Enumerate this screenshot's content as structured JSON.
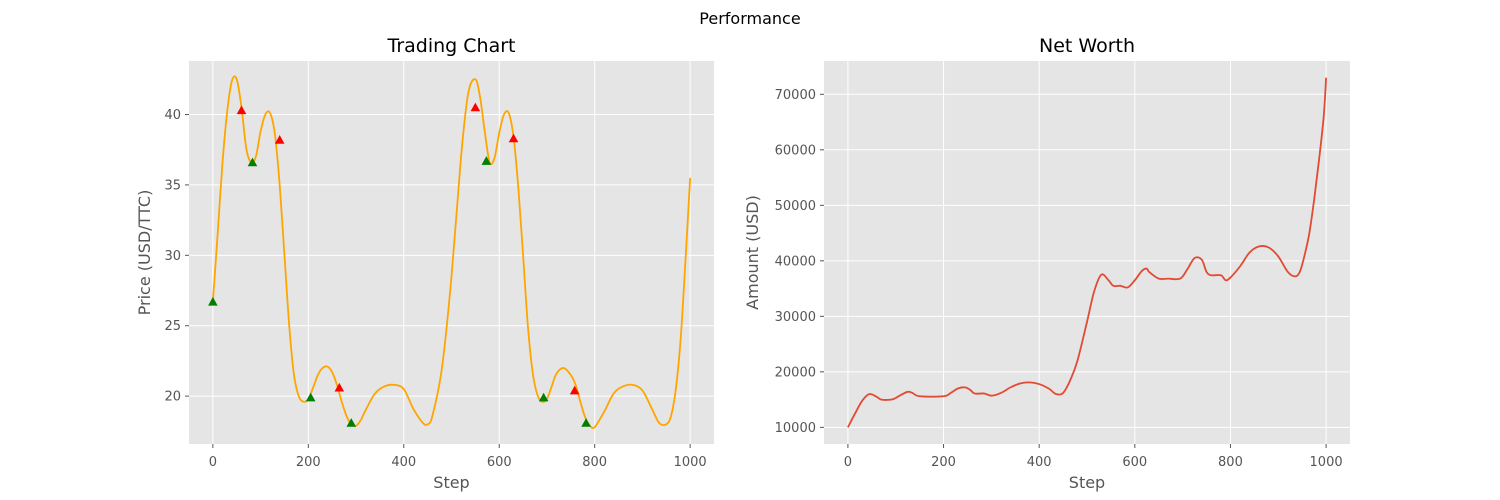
{
  "figure": {
    "suptitle": "Performance"
  },
  "chart_data": [
    {
      "id": "trading",
      "type": "line",
      "title": "Trading Chart",
      "xlabel": "Step",
      "ylabel": "Price (USD/TTC)",
      "xlim": [
        -50,
        1050
      ],
      "ylim": [
        16.6,
        43.8
      ],
      "xticks": [
        0,
        200,
        400,
        600,
        800,
        1000
      ],
      "yticks": [
        20,
        25,
        30,
        35,
        40
      ],
      "grid": true,
      "line_color": "#ffa500",
      "series": [
        {
          "x": [
            0,
            10,
            20,
            30,
            40,
            50,
            60,
            70,
            80,
            90,
            100,
            110,
            120,
            130,
            140,
            150,
            160,
            170,
            180,
            190,
            200,
            210,
            220,
            230,
            240,
            250,
            260,
            270,
            280,
            290,
            300,
            310,
            320,
            340,
            360,
            380,
            400,
            420,
            440,
            450,
            460,
            480,
            500,
            520,
            535,
            550,
            560,
            570,
            580,
            590,
            600,
            610,
            620,
            630,
            640,
            650,
            660,
            670,
            680,
            690,
            700,
            710,
            720,
            735,
            750,
            760,
            770,
            780,
            790,
            800,
            820,
            840,
            860,
            880,
            900,
            920,
            935,
            950,
            960,
            970,
            980,
            990,
            1000
          ],
          "y": [
            26.7,
            31.5,
            36.5,
            40.2,
            42.4,
            42.5,
            40.5,
            37.6,
            36.6,
            37.0,
            38.8,
            40.0,
            40.1,
            38.6,
            35.0,
            30.0,
            25.0,
            21.5,
            20.0,
            19.6,
            19.8,
            20.6,
            21.5,
            22.0,
            22.1,
            21.7,
            20.8,
            19.6,
            18.6,
            18.0,
            17.9,
            18.3,
            19.0,
            20.2,
            20.7,
            20.8,
            20.5,
            19.1,
            18.1,
            18.0,
            18.6,
            22.0,
            28.5,
            37.0,
            41.5,
            42.5,
            41.2,
            38.7,
            36.6,
            36.9,
            38.7,
            40.0,
            40.1,
            38.4,
            34.8,
            30.0,
            25.0,
            21.7,
            20.1,
            19.6,
            19.8,
            20.7,
            21.6,
            22.0,
            21.5,
            20.8,
            19.6,
            18.5,
            17.9,
            17.8,
            18.9,
            20.2,
            20.7,
            20.8,
            20.4,
            19.1,
            18.1,
            18.0,
            18.6,
            20.5,
            24.0,
            29.5,
            35.5
          ]
        }
      ],
      "markers": [
        {
          "kind": "buy",
          "color": "#008000",
          "x": 0,
          "y": 26.7
        },
        {
          "kind": "sell",
          "color": "#ff0000",
          "x": 60,
          "y": 40.3
        },
        {
          "kind": "buy",
          "color": "#008000",
          "x": 83,
          "y": 36.6
        },
        {
          "kind": "sell",
          "color": "#ff0000",
          "x": 140,
          "y": 38.2
        },
        {
          "kind": "buy",
          "color": "#008000",
          "x": 205,
          "y": 19.9
        },
        {
          "kind": "sell",
          "color": "#ff0000",
          "x": 265,
          "y": 20.6
        },
        {
          "kind": "buy",
          "color": "#008000",
          "x": 290,
          "y": 18.1
        },
        {
          "kind": "sell",
          "color": "#ff0000",
          "x": 550,
          "y": 40.5
        },
        {
          "kind": "buy",
          "color": "#008000",
          "x": 573,
          "y": 36.7
        },
        {
          "kind": "sell",
          "color": "#ff0000",
          "x": 630,
          "y": 38.3
        },
        {
          "kind": "buy",
          "color": "#008000",
          "x": 693,
          "y": 19.9
        },
        {
          "kind": "sell",
          "color": "#ff0000",
          "x": 758,
          "y": 20.4
        },
        {
          "kind": "buy",
          "color": "#008000",
          "x": 782,
          "y": 18.1
        }
      ]
    },
    {
      "id": "networth",
      "type": "line",
      "title": "Net Worth",
      "xlabel": "Step",
      "ylabel": "Amount (USD)",
      "xlim": [
        -50,
        1050
      ],
      "ylim": [
        7000,
        76000
      ],
      "xticks": [
        0,
        200,
        400,
        600,
        800,
        1000
      ],
      "yticks": [
        10000,
        20000,
        30000,
        40000,
        50000,
        60000,
        70000
      ],
      "grid": true,
      "line_color": "#e24a33",
      "series": [
        {
          "x": [
            0,
            15,
            30,
            45,
            60,
            70,
            90,
            100,
            110,
            125,
            135,
            150,
            200,
            215,
            230,
            245,
            255,
            265,
            285,
            300,
            320,
            340,
            360,
            380,
            400,
            420,
            435,
            450,
            465,
            480,
            500,
            515,
            530,
            545,
            555,
            570,
            585,
            600,
            615,
            625,
            630,
            650,
            670,
            695,
            710,
            725,
            740,
            750,
            760,
            780,
            790,
            800,
            820,
            840,
            860,
            880,
            900,
            920,
            935,
            945,
            955,
            965,
            975,
            985,
            995,
            1000
          ],
          "y": [
            10000,
            12500,
            14800,
            16000,
            15500,
            15000,
            15000,
            15300,
            15800,
            16400,
            16200,
            15600,
            15600,
            16200,
            17000,
            17200,
            16800,
            16100,
            16100,
            15700,
            16200,
            17200,
            17900,
            18100,
            17800,
            17000,
            16000,
            16200,
            18500,
            22000,
            29000,
            34500,
            37500,
            36500,
            35500,
            35500,
            35200,
            36500,
            38200,
            38600,
            38000,
            36800,
            36800,
            36800,
            38500,
            40500,
            40200,
            38000,
            37400,
            37400,
            36500,
            37000,
            39000,
            41500,
            42600,
            42400,
            40800,
            38000,
            37200,
            38000,
            41000,
            45000,
            51000,
            58000,
            66000,
            73000
          ]
        }
      ],
      "markers": []
    }
  ]
}
